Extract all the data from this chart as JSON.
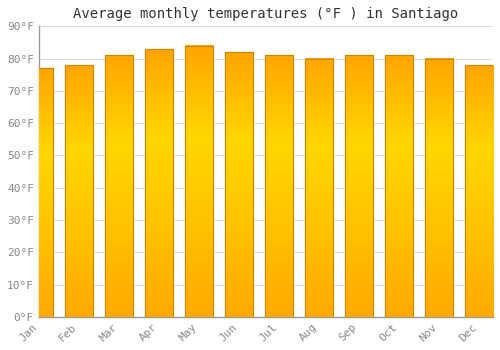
{
  "title": "Average monthly temperatures (°F ) in Santiago",
  "months": [
    "Jan",
    "Feb",
    "Mar",
    "Apr",
    "May",
    "Jun",
    "Jul",
    "Aug",
    "Sep",
    "Oct",
    "Nov",
    "Dec"
  ],
  "values": [
    77,
    78,
    81,
    83,
    84,
    82,
    81,
    80,
    81,
    81,
    80,
    78
  ],
  "ylim": [
    0,
    90
  ],
  "yticks": [
    0,
    10,
    20,
    30,
    40,
    50,
    60,
    70,
    80,
    90
  ],
  "ytick_labels": [
    "0°F",
    "10°F",
    "20°F",
    "30°F",
    "40°F",
    "50°F",
    "60°F",
    "70°F",
    "80°F",
    "90°F"
  ],
  "bar_color_main": "#FFA500",
  "bar_color_top": "#FFCC00",
  "bar_edge_color": "#CC8800",
  "background_color": "#FFFFFF",
  "grid_color": "#DDDDDD",
  "title_fontsize": 10,
  "tick_fontsize": 8,
  "font_family": "monospace"
}
